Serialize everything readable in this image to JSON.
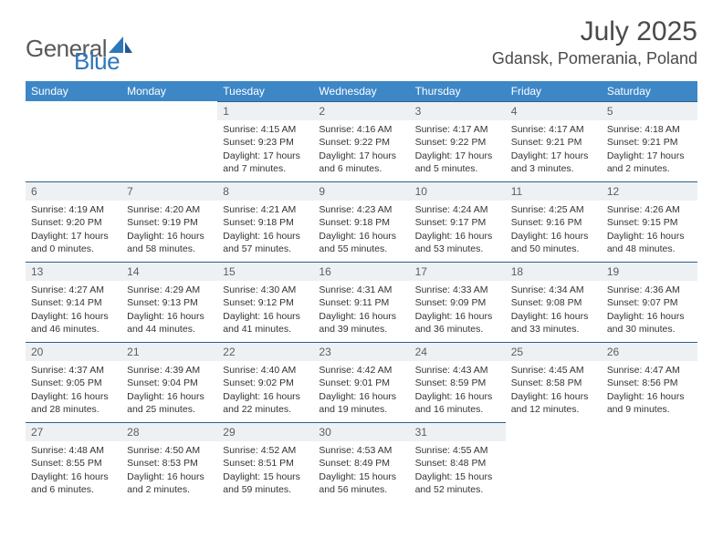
{
  "brand": {
    "word1": "General",
    "word2": "Blue"
  },
  "title": {
    "month": "July 2025",
    "location": "Gdansk, Pomerania, Poland"
  },
  "colors": {
    "header_bg": "#3d87c7",
    "header_text": "#ffffff",
    "daynum_bg": "#eef1f3",
    "daynum_text": "#5a5e63",
    "daynum_border": "#325f8a",
    "body_text": "#333333",
    "logo_general": "#59595b",
    "logo_blue": "#2f77bb",
    "title_color": "#4a4a4c"
  },
  "weekdays": [
    "Sunday",
    "Monday",
    "Tuesday",
    "Wednesday",
    "Thursday",
    "Friday",
    "Saturday"
  ],
  "weeks": [
    [
      null,
      null,
      {
        "n": "1",
        "sr": "4:15 AM",
        "ss": "9:23 PM",
        "dl": "17 hours and 7 minutes."
      },
      {
        "n": "2",
        "sr": "4:16 AM",
        "ss": "9:22 PM",
        "dl": "17 hours and 6 minutes."
      },
      {
        "n": "3",
        "sr": "4:17 AM",
        "ss": "9:22 PM",
        "dl": "17 hours and 5 minutes."
      },
      {
        "n": "4",
        "sr": "4:17 AM",
        "ss": "9:21 PM",
        "dl": "17 hours and 3 minutes."
      },
      {
        "n": "5",
        "sr": "4:18 AM",
        "ss": "9:21 PM",
        "dl": "17 hours and 2 minutes."
      }
    ],
    [
      {
        "n": "6",
        "sr": "4:19 AM",
        "ss": "9:20 PM",
        "dl": "17 hours and 0 minutes."
      },
      {
        "n": "7",
        "sr": "4:20 AM",
        "ss": "9:19 PM",
        "dl": "16 hours and 58 minutes."
      },
      {
        "n": "8",
        "sr": "4:21 AM",
        "ss": "9:18 PM",
        "dl": "16 hours and 57 minutes."
      },
      {
        "n": "9",
        "sr": "4:23 AM",
        "ss": "9:18 PM",
        "dl": "16 hours and 55 minutes."
      },
      {
        "n": "10",
        "sr": "4:24 AM",
        "ss": "9:17 PM",
        "dl": "16 hours and 53 minutes."
      },
      {
        "n": "11",
        "sr": "4:25 AM",
        "ss": "9:16 PM",
        "dl": "16 hours and 50 minutes."
      },
      {
        "n": "12",
        "sr": "4:26 AM",
        "ss": "9:15 PM",
        "dl": "16 hours and 48 minutes."
      }
    ],
    [
      {
        "n": "13",
        "sr": "4:27 AM",
        "ss": "9:14 PM",
        "dl": "16 hours and 46 minutes."
      },
      {
        "n": "14",
        "sr": "4:29 AM",
        "ss": "9:13 PM",
        "dl": "16 hours and 44 minutes."
      },
      {
        "n": "15",
        "sr": "4:30 AM",
        "ss": "9:12 PM",
        "dl": "16 hours and 41 minutes."
      },
      {
        "n": "16",
        "sr": "4:31 AM",
        "ss": "9:11 PM",
        "dl": "16 hours and 39 minutes."
      },
      {
        "n": "17",
        "sr": "4:33 AM",
        "ss": "9:09 PM",
        "dl": "16 hours and 36 minutes."
      },
      {
        "n": "18",
        "sr": "4:34 AM",
        "ss": "9:08 PM",
        "dl": "16 hours and 33 minutes."
      },
      {
        "n": "19",
        "sr": "4:36 AM",
        "ss": "9:07 PM",
        "dl": "16 hours and 30 minutes."
      }
    ],
    [
      {
        "n": "20",
        "sr": "4:37 AM",
        "ss": "9:05 PM",
        "dl": "16 hours and 28 minutes."
      },
      {
        "n": "21",
        "sr": "4:39 AM",
        "ss": "9:04 PM",
        "dl": "16 hours and 25 minutes."
      },
      {
        "n": "22",
        "sr": "4:40 AM",
        "ss": "9:02 PM",
        "dl": "16 hours and 22 minutes."
      },
      {
        "n": "23",
        "sr": "4:42 AM",
        "ss": "9:01 PM",
        "dl": "16 hours and 19 minutes."
      },
      {
        "n": "24",
        "sr": "4:43 AM",
        "ss": "8:59 PM",
        "dl": "16 hours and 16 minutes."
      },
      {
        "n": "25",
        "sr": "4:45 AM",
        "ss": "8:58 PM",
        "dl": "16 hours and 12 minutes."
      },
      {
        "n": "26",
        "sr": "4:47 AM",
        "ss": "8:56 PM",
        "dl": "16 hours and 9 minutes."
      }
    ],
    [
      {
        "n": "27",
        "sr": "4:48 AM",
        "ss": "8:55 PM",
        "dl": "16 hours and 6 minutes."
      },
      {
        "n": "28",
        "sr": "4:50 AM",
        "ss": "8:53 PM",
        "dl": "16 hours and 2 minutes."
      },
      {
        "n": "29",
        "sr": "4:52 AM",
        "ss": "8:51 PM",
        "dl": "15 hours and 59 minutes."
      },
      {
        "n": "30",
        "sr": "4:53 AM",
        "ss": "8:49 PM",
        "dl": "15 hours and 56 minutes."
      },
      {
        "n": "31",
        "sr": "4:55 AM",
        "ss": "8:48 PM",
        "dl": "15 hours and 52 minutes."
      },
      null,
      null
    ]
  ],
  "labels": {
    "sunrise": "Sunrise:",
    "sunset": "Sunset:",
    "daylight": "Daylight:"
  }
}
